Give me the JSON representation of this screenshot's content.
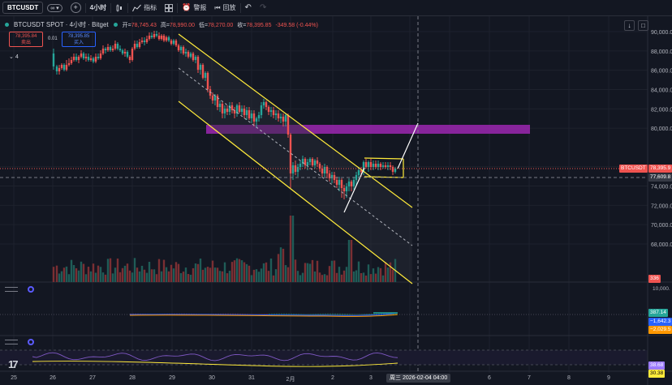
{
  "toolbar": {
    "symbol": "BTCUSDT",
    "interval": "4小时",
    "indicators": "指标",
    "alert": "警报",
    "replay": "回放"
  },
  "legend": {
    "title": "BTCUSDT SPOT · 4小时 · Bitget",
    "open_label": "开=",
    "open": "78,745.43",
    "high_label": "高=",
    "high": "78,990.00",
    "low_label": "低=",
    "low": "78,270.00",
    "close_label": "收=",
    "close": "78,395.85",
    "change": "-349.58 (-0.44%)",
    "sell_price": "78,395.84",
    "sell_label": "卖出",
    "buy_price": "78,395.85",
    "buy_label": "买入",
    "spread": "0.01",
    "collapse": "4"
  },
  "price_axis": {
    "labels": [
      "90,000.0",
      "88,000.0",
      "86,000.0",
      "84,000.0",
      "82,000.0",
      "80,000.0",
      "76,000.0",
      "74,000.0",
      "72,000.0",
      "70,000.0",
      "68,000.0"
    ],
    "symbol_tag": "BTCUSDT",
    "current_price": "78,395.9",
    "crosshair_price": "77,609.8",
    "volume_tag": "336"
  },
  "macd_pane": {
    "axis_label": "10,000.",
    "values": [
      "387.14",
      "−1,642.3",
      "−2,029.5"
    ]
  },
  "rsi_pane": {
    "values": [
      "38.68",
      "30.38"
    ]
  },
  "time_axis": {
    "labels": [
      "25",
      "26",
      "27",
      "28",
      "29",
      "30",
      "31",
      "2月",
      "2",
      "3",
      "6",
      "7",
      "8",
      "9"
    ],
    "cursor_date": "周三 2026-02-04 04:00"
  },
  "colors": {
    "up": "#26a69a",
    "down": "#ef5350",
    "channel": "#ffeb3b",
    "zone": "#9c27b0",
    "background": "#131722"
  },
  "icons": [
    "chevron-down-icon",
    "plus-icon",
    "candles-icon",
    "indicators-icon",
    "layout-icon",
    "alert-icon",
    "replay-icon",
    "undo-icon",
    "redo-icon"
  ]
}
